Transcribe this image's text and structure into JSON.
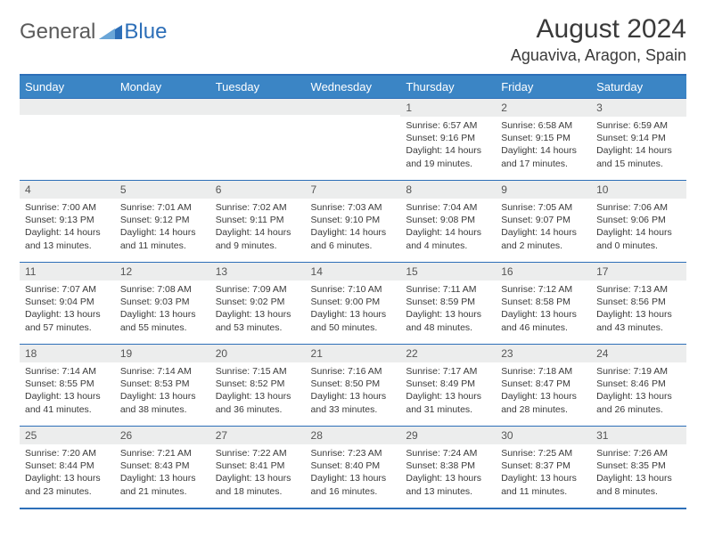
{
  "logo": {
    "part1": "General",
    "part2": "Blue"
  },
  "title": "August 2024",
  "location": "Aguaviva, Aragon, Spain",
  "colors": {
    "header_bg": "#3b85c5",
    "border": "#2d6fb8",
    "daynum_bg": "#eceded",
    "text": "#3a3a3a"
  },
  "weekdays": [
    "Sunday",
    "Monday",
    "Tuesday",
    "Wednesday",
    "Thursday",
    "Friday",
    "Saturday"
  ],
  "weeks": [
    [
      {
        "n": "",
        "sr": "",
        "ss": "",
        "dl": ""
      },
      {
        "n": "",
        "sr": "",
        "ss": "",
        "dl": ""
      },
      {
        "n": "",
        "sr": "",
        "ss": "",
        "dl": ""
      },
      {
        "n": "",
        "sr": "",
        "ss": "",
        "dl": ""
      },
      {
        "n": "1",
        "sr": "Sunrise: 6:57 AM",
        "ss": "Sunset: 9:16 PM",
        "dl": "Daylight: 14 hours and 19 minutes."
      },
      {
        "n": "2",
        "sr": "Sunrise: 6:58 AM",
        "ss": "Sunset: 9:15 PM",
        "dl": "Daylight: 14 hours and 17 minutes."
      },
      {
        "n": "3",
        "sr": "Sunrise: 6:59 AM",
        "ss": "Sunset: 9:14 PM",
        "dl": "Daylight: 14 hours and 15 minutes."
      }
    ],
    [
      {
        "n": "4",
        "sr": "Sunrise: 7:00 AM",
        "ss": "Sunset: 9:13 PM",
        "dl": "Daylight: 14 hours and 13 minutes."
      },
      {
        "n": "5",
        "sr": "Sunrise: 7:01 AM",
        "ss": "Sunset: 9:12 PM",
        "dl": "Daylight: 14 hours and 11 minutes."
      },
      {
        "n": "6",
        "sr": "Sunrise: 7:02 AM",
        "ss": "Sunset: 9:11 PM",
        "dl": "Daylight: 14 hours and 9 minutes."
      },
      {
        "n": "7",
        "sr": "Sunrise: 7:03 AM",
        "ss": "Sunset: 9:10 PM",
        "dl": "Daylight: 14 hours and 6 minutes."
      },
      {
        "n": "8",
        "sr": "Sunrise: 7:04 AM",
        "ss": "Sunset: 9:08 PM",
        "dl": "Daylight: 14 hours and 4 minutes."
      },
      {
        "n": "9",
        "sr": "Sunrise: 7:05 AM",
        "ss": "Sunset: 9:07 PM",
        "dl": "Daylight: 14 hours and 2 minutes."
      },
      {
        "n": "10",
        "sr": "Sunrise: 7:06 AM",
        "ss": "Sunset: 9:06 PM",
        "dl": "Daylight: 14 hours and 0 minutes."
      }
    ],
    [
      {
        "n": "11",
        "sr": "Sunrise: 7:07 AM",
        "ss": "Sunset: 9:04 PM",
        "dl": "Daylight: 13 hours and 57 minutes."
      },
      {
        "n": "12",
        "sr": "Sunrise: 7:08 AM",
        "ss": "Sunset: 9:03 PM",
        "dl": "Daylight: 13 hours and 55 minutes."
      },
      {
        "n": "13",
        "sr": "Sunrise: 7:09 AM",
        "ss": "Sunset: 9:02 PM",
        "dl": "Daylight: 13 hours and 53 minutes."
      },
      {
        "n": "14",
        "sr": "Sunrise: 7:10 AM",
        "ss": "Sunset: 9:00 PM",
        "dl": "Daylight: 13 hours and 50 minutes."
      },
      {
        "n": "15",
        "sr": "Sunrise: 7:11 AM",
        "ss": "Sunset: 8:59 PM",
        "dl": "Daylight: 13 hours and 48 minutes."
      },
      {
        "n": "16",
        "sr": "Sunrise: 7:12 AM",
        "ss": "Sunset: 8:58 PM",
        "dl": "Daylight: 13 hours and 46 minutes."
      },
      {
        "n": "17",
        "sr": "Sunrise: 7:13 AM",
        "ss": "Sunset: 8:56 PM",
        "dl": "Daylight: 13 hours and 43 minutes."
      }
    ],
    [
      {
        "n": "18",
        "sr": "Sunrise: 7:14 AM",
        "ss": "Sunset: 8:55 PM",
        "dl": "Daylight: 13 hours and 41 minutes."
      },
      {
        "n": "19",
        "sr": "Sunrise: 7:14 AM",
        "ss": "Sunset: 8:53 PM",
        "dl": "Daylight: 13 hours and 38 minutes."
      },
      {
        "n": "20",
        "sr": "Sunrise: 7:15 AM",
        "ss": "Sunset: 8:52 PM",
        "dl": "Daylight: 13 hours and 36 minutes."
      },
      {
        "n": "21",
        "sr": "Sunrise: 7:16 AM",
        "ss": "Sunset: 8:50 PM",
        "dl": "Daylight: 13 hours and 33 minutes."
      },
      {
        "n": "22",
        "sr": "Sunrise: 7:17 AM",
        "ss": "Sunset: 8:49 PM",
        "dl": "Daylight: 13 hours and 31 minutes."
      },
      {
        "n": "23",
        "sr": "Sunrise: 7:18 AM",
        "ss": "Sunset: 8:47 PM",
        "dl": "Daylight: 13 hours and 28 minutes."
      },
      {
        "n": "24",
        "sr": "Sunrise: 7:19 AM",
        "ss": "Sunset: 8:46 PM",
        "dl": "Daylight: 13 hours and 26 minutes."
      }
    ],
    [
      {
        "n": "25",
        "sr": "Sunrise: 7:20 AM",
        "ss": "Sunset: 8:44 PM",
        "dl": "Daylight: 13 hours and 23 minutes."
      },
      {
        "n": "26",
        "sr": "Sunrise: 7:21 AM",
        "ss": "Sunset: 8:43 PM",
        "dl": "Daylight: 13 hours and 21 minutes."
      },
      {
        "n": "27",
        "sr": "Sunrise: 7:22 AM",
        "ss": "Sunset: 8:41 PM",
        "dl": "Daylight: 13 hours and 18 minutes."
      },
      {
        "n": "28",
        "sr": "Sunrise: 7:23 AM",
        "ss": "Sunset: 8:40 PM",
        "dl": "Daylight: 13 hours and 16 minutes."
      },
      {
        "n": "29",
        "sr": "Sunrise: 7:24 AM",
        "ss": "Sunset: 8:38 PM",
        "dl": "Daylight: 13 hours and 13 minutes."
      },
      {
        "n": "30",
        "sr": "Sunrise: 7:25 AM",
        "ss": "Sunset: 8:37 PM",
        "dl": "Daylight: 13 hours and 11 minutes."
      },
      {
        "n": "31",
        "sr": "Sunrise: 7:26 AM",
        "ss": "Sunset: 8:35 PM",
        "dl": "Daylight: 13 hours and 8 minutes."
      }
    ]
  ]
}
